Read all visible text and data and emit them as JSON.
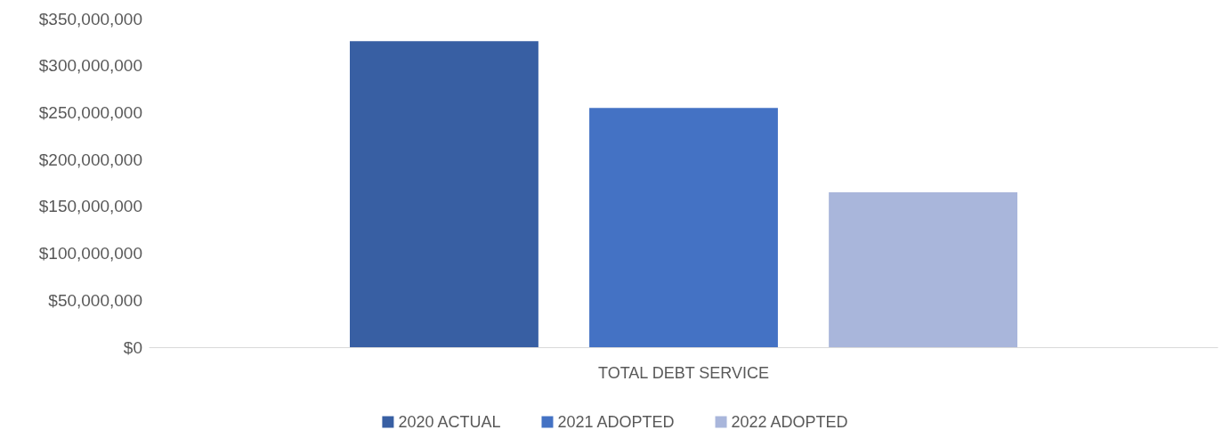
{
  "chart_data": {
    "type": "bar",
    "categories": [
      "TOTAL DEBT SERVICE"
    ],
    "series": [
      {
        "name": "2020 ACTUAL",
        "color": "#385fa3",
        "values": [
          326000000
        ]
      },
      {
        "name": "2021 ADOPTED",
        "color": "#4472c4",
        "values": [
          255000000
        ]
      },
      {
        "name": "2022 ADOPTED",
        "color": "#a9b6db",
        "values": [
          165000000
        ]
      }
    ],
    "ylim": [
      0,
      350000000
    ],
    "yticks": [
      {
        "value": 0,
        "label": "$0"
      },
      {
        "value": 50000000,
        "label": "$50,000,000"
      },
      {
        "value": 100000000,
        "label": "$100,000,000"
      },
      {
        "value": 150000000,
        "label": "$150,000,000"
      },
      {
        "value": 200000000,
        "label": "$200,000,000"
      },
      {
        "value": 250000000,
        "label": "$250,000,000"
      },
      {
        "value": 300000000,
        "label": "$300,000,000"
      },
      {
        "value": 350000000,
        "label": "$350,000,000"
      }
    ],
    "grid": false,
    "legend": "bottom"
  }
}
